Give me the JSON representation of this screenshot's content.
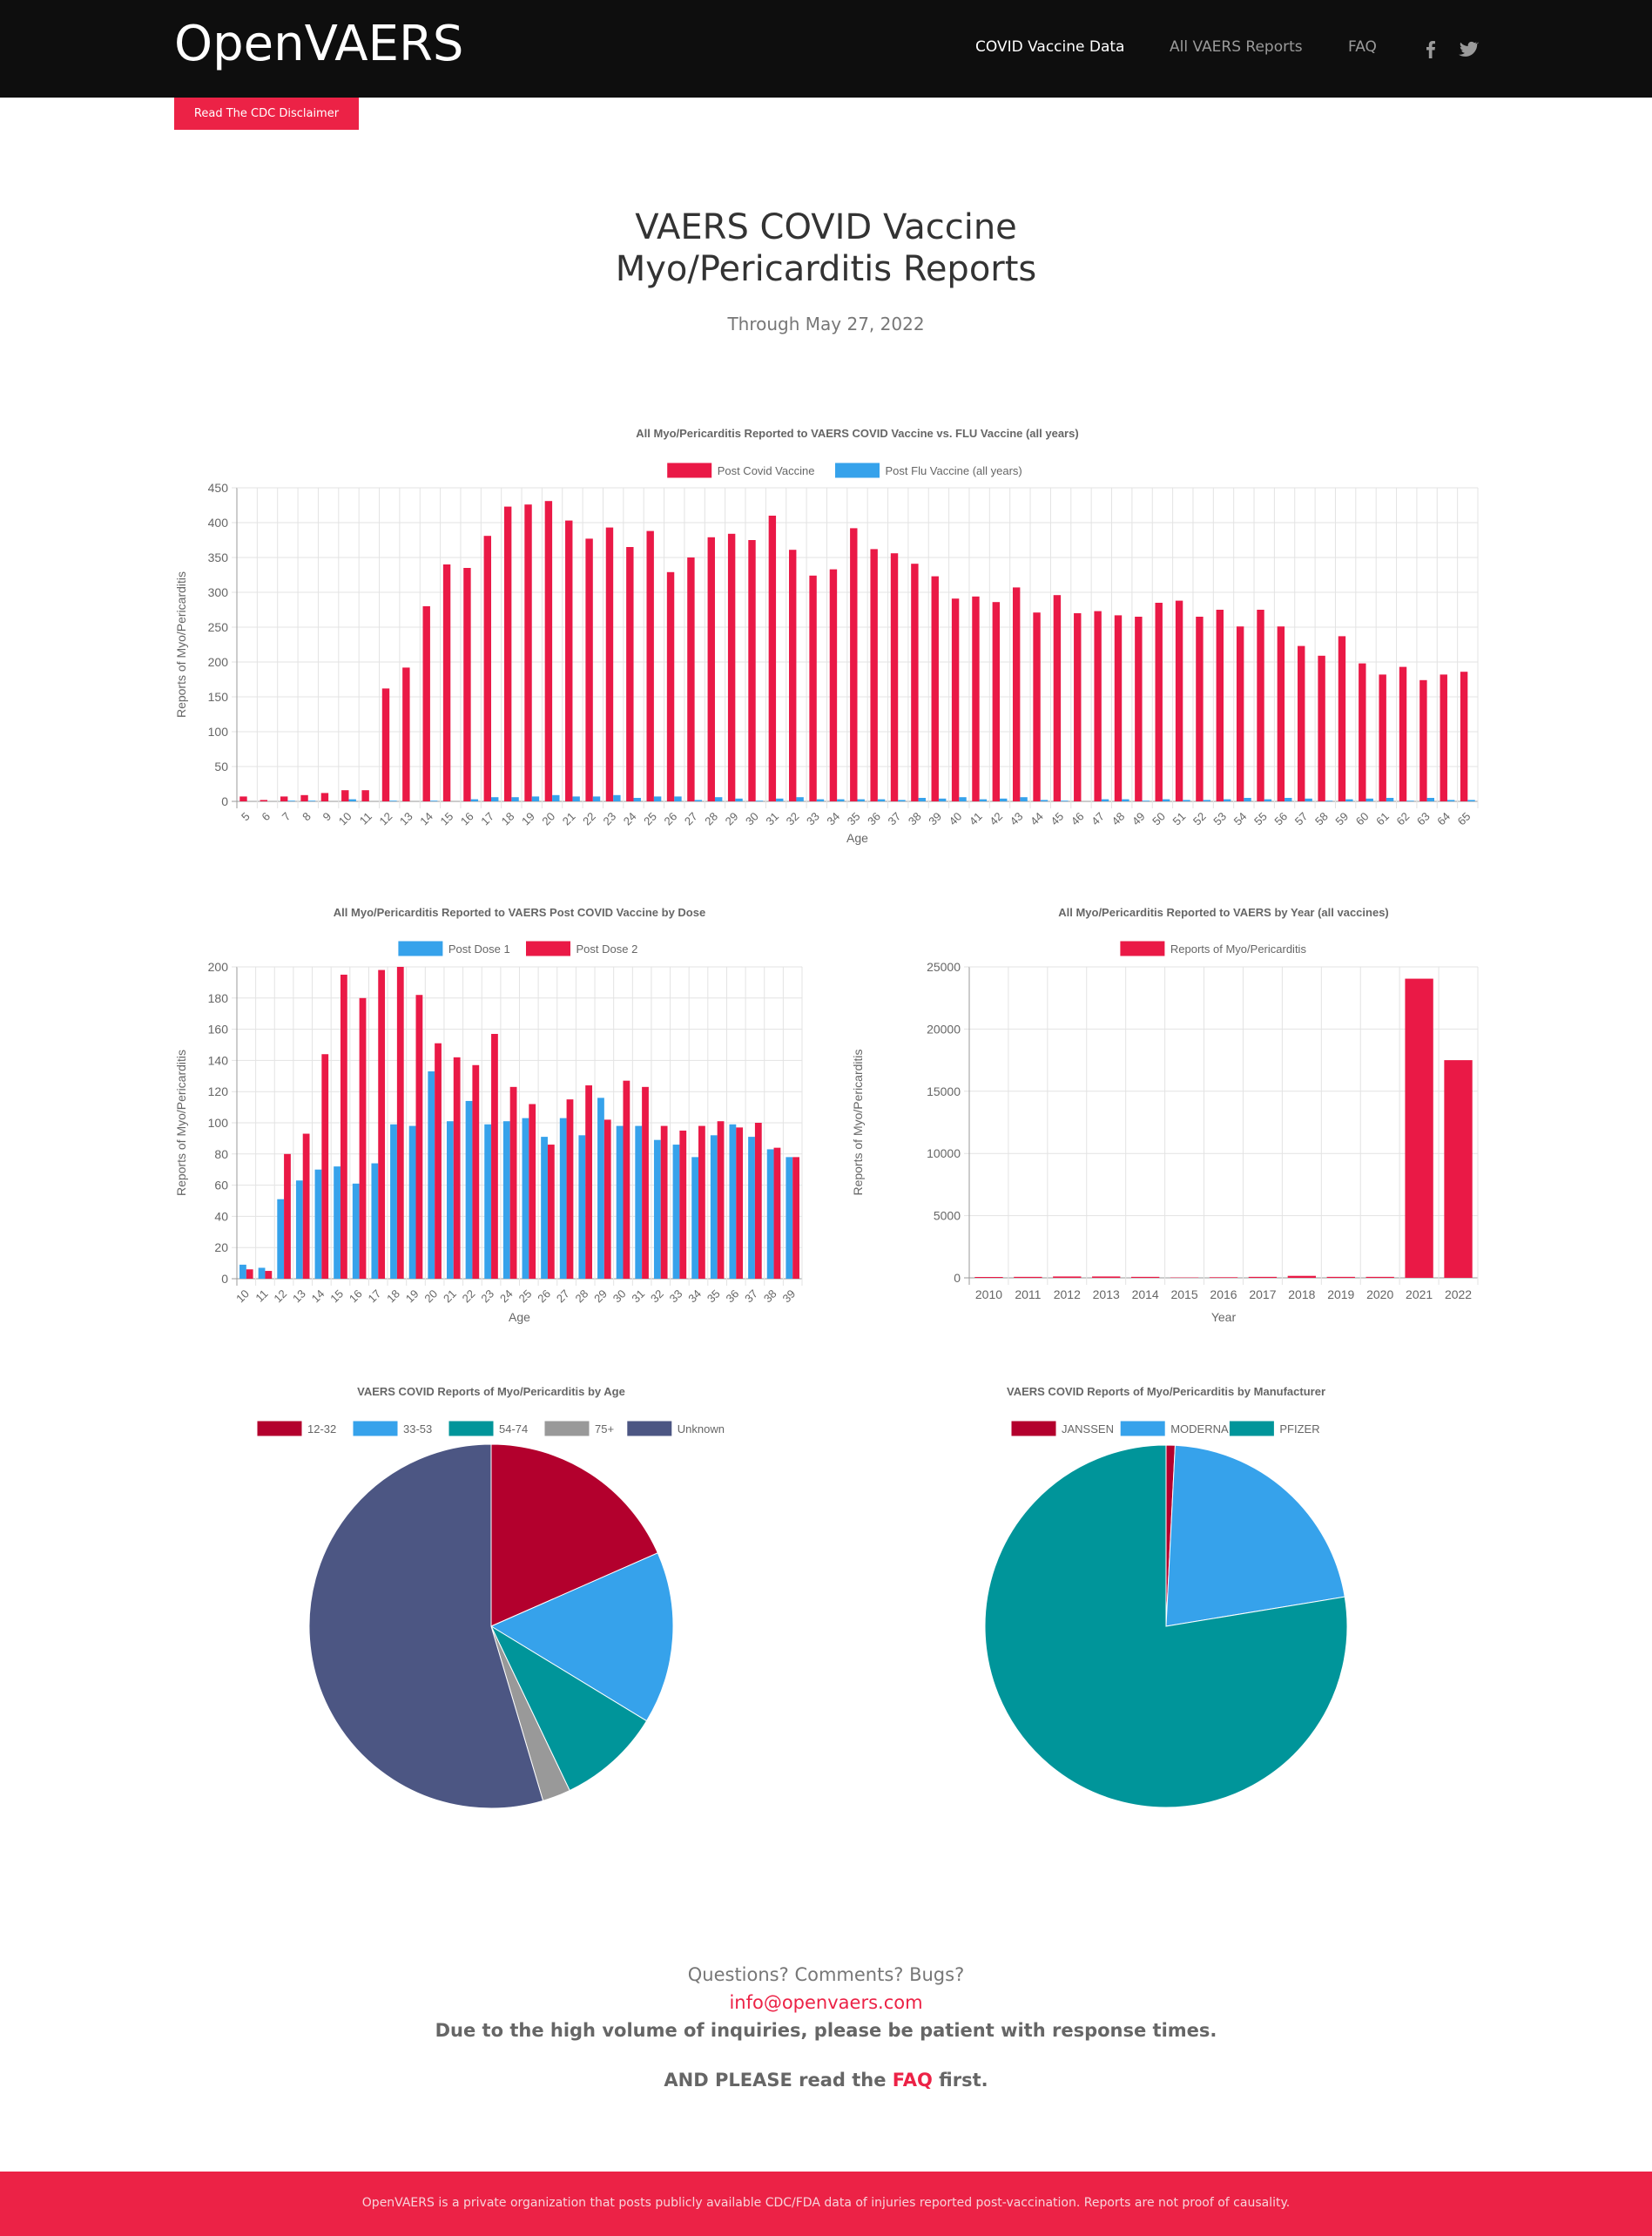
{
  "nav": {
    "logo": "OpenVAERS",
    "links": [
      {
        "label": "COVID Vaccine Data",
        "active": true
      },
      {
        "label": "All VAERS Reports",
        "active": false
      },
      {
        "label": "FAQ",
        "active": false
      }
    ],
    "social_icons": [
      "facebook-icon",
      "twitter-icon"
    ]
  },
  "disclaimer_button": "Read The CDC Disclaimer",
  "page": {
    "title_line1": "VAERS COVID Vaccine",
    "title_line2": "Myo/Pericarditis Reports",
    "subtitle": "Through May 27, 2022"
  },
  "colors": {
    "brand_red": "#ec2246",
    "bar_red": "#ea1946",
    "bar_blue": "#36a2eb",
    "pie_red": "#b3002d",
    "pie_blue": "#36a2eb",
    "pie_teal": "#00959a",
    "pie_gray": "#999999",
    "pie_navy": "#4c5683"
  },
  "chart_data": [
    {
      "id": "covid_vs_flu",
      "type": "bar",
      "title": "All Myo/Pericarditis Reported to VAERS COVID Vaccine vs. FLU Vaccine (all years)",
      "xlabel": "Age",
      "ylabel": "Reports of Myo/Pericarditis",
      "ylim": [
        0,
        450
      ],
      "yticks": [
        0,
        50,
        100,
        150,
        200,
        250,
        300,
        350,
        400,
        450
      ],
      "grid": true,
      "legend": "top-center",
      "categories": [
        "5",
        "6",
        "7",
        "8",
        "9",
        "10",
        "11",
        "12",
        "13",
        "14",
        "15",
        "16",
        "17",
        "18",
        "19",
        "20",
        "21",
        "22",
        "23",
        "24",
        "25",
        "26",
        "27",
        "28",
        "29",
        "30",
        "31",
        "32",
        "33",
        "34",
        "35",
        "36",
        "37",
        "38",
        "39",
        "40",
        "41",
        "42",
        "43",
        "44",
        "45",
        "46",
        "47",
        "48",
        "49",
        "50",
        "51",
        "52",
        "53",
        "54",
        "55",
        "56",
        "57",
        "58",
        "59",
        "60",
        "61",
        "62",
        "63",
        "64",
        "65"
      ],
      "series": [
        {
          "name": "Post Covid Vaccine",
          "color": "#ea1946",
          "values": [
            7,
            2,
            7,
            9,
            12,
            16,
            16,
            162,
            192,
            280,
            340,
            335,
            381,
            423,
            426,
            431,
            403,
            377,
            393,
            365,
            388,
            329,
            350,
            379,
            384,
            375,
            410,
            361,
            324,
            333,
            392,
            362,
            356,
            341,
            323,
            291,
            294,
            286,
            307,
            271,
            296,
            270,
            273,
            267,
            265,
            285,
            288,
            265,
            275,
            251,
            275,
            251,
            223,
            209,
            237,
            198,
            182,
            193,
            174,
            182,
            186
          ]
        },
        {
          "name": "Post Flu Vaccine (all years)",
          "color": "#36a2eb",
          "values": [
            0,
            0,
            1,
            1,
            0,
            3,
            0,
            1,
            0,
            1,
            0,
            3,
            6,
            6,
            7,
            9,
            7,
            7,
            9,
            5,
            7,
            7,
            2,
            6,
            4,
            1,
            4,
            6,
            3,
            3,
            3,
            3,
            2,
            5,
            4,
            6,
            3,
            4,
            6,
            2,
            1,
            0,
            3,
            3,
            1,
            3,
            2,
            2,
            3,
            5,
            3,
            5,
            4,
            1,
            3,
            4,
            5,
            1,
            5,
            2,
            2
          ]
        }
      ]
    },
    {
      "id": "by_dose",
      "type": "bar",
      "title": "All Myo/Pericarditis Reported to VAERS Post COVID Vaccine by Dose",
      "xlabel": "Age",
      "ylabel": "Reports of Myo/Pericarditis",
      "ylim": [
        0,
        200
      ],
      "yticks": [
        0,
        20,
        40,
        60,
        80,
        100,
        120,
        140,
        160,
        180,
        200
      ],
      "grid": true,
      "legend": "top-center",
      "categories": [
        "10",
        "11",
        "12",
        "13",
        "14",
        "15",
        "16",
        "17",
        "18",
        "19",
        "20",
        "21",
        "22",
        "23",
        "24",
        "25",
        "26",
        "27",
        "28",
        "29",
        "30",
        "31",
        "32",
        "33",
        "34",
        "35",
        "36",
        "37",
        "38",
        "39"
      ],
      "series": [
        {
          "name": "Post Dose 1",
          "color": "#36a2eb",
          "values": [
            9,
            7,
            51,
            63,
            70,
            72,
            61,
            74,
            99,
            98,
            133,
            101,
            114,
            99,
            101,
            103,
            91,
            103,
            92,
            116,
            98,
            98,
            89,
            86,
            78,
            92,
            99,
            91,
            83,
            78
          ]
        },
        {
          "name": "Post Dose 2",
          "color": "#ea1946",
          "values": [
            6,
            5,
            80,
            93,
            144,
            195,
            180,
            198,
            200,
            182,
            151,
            142,
            137,
            157,
            123,
            112,
            86,
            115,
            124,
            102,
            127,
            123,
            98,
            95,
            98,
            101,
            97,
            100,
            84,
            78
          ]
        }
      ]
    },
    {
      "id": "by_year",
      "type": "bar",
      "title": "All Myo/Pericarditis Reported to VAERS by Year (all vaccines)",
      "xlabel": "Year",
      "ylabel": "Reports of Myo/Pericarditis",
      "ylim": [
        0,
        25000
      ],
      "yticks": [
        0,
        5000,
        10000,
        15000,
        20000,
        25000
      ],
      "grid": true,
      "legend": "top-center",
      "categories": [
        "2010",
        "2011",
        "2012",
        "2013",
        "2014",
        "2015",
        "2016",
        "2017",
        "2018",
        "2019",
        "2020",
        "2021",
        "2022"
      ],
      "series": [
        {
          "name": "Reports of Myo/Pericarditis",
          "color": "#ea1946",
          "values": [
            70,
            80,
            110,
            110,
            80,
            30,
            50,
            80,
            160,
            80,
            80,
            24050,
            17500
          ]
        }
      ]
    },
    {
      "id": "pie_age",
      "type": "pie",
      "title": "VAERS COVID Reports of Myo/Pericarditis by Age",
      "legend": "top-center",
      "labels": [
        "12-32",
        "33-53",
        "54-74",
        "75+",
        "Unknown"
      ],
      "values": [
        18.4,
        15.3,
        9.2,
        2.5,
        54.6
      ],
      "unit": "percent (estimated)",
      "colors": [
        "#b3002d",
        "#36a2eb",
        "#00959a",
        "#999999",
        "#4c5683"
      ]
    },
    {
      "id": "pie_manufacturer",
      "type": "pie",
      "title": "VAERS COVID Reports of Myo/Pericarditis by Manufacturer",
      "legend": "top-center",
      "labels": [
        "JANSSEN",
        "MODERNA",
        "PFIZER"
      ],
      "values": [
        0.8,
        21.6,
        77.6
      ],
      "unit": "percent (estimated)",
      "colors": [
        "#b3002d",
        "#36a2eb",
        "#00959a"
      ]
    }
  ],
  "footer": {
    "questions": "Questions? Comments? Bugs?",
    "email": "info@openvaers.com",
    "notice": "Due to the high volume of inquiries, please be patient with response times.",
    "faq_prefix": "AND PLEASE read the ",
    "faq_link": "FAQ",
    "faq_suffix": " first.",
    "disclaimer": "OpenVAERS is a private organization that posts publicly available CDC/FDA data of injuries reported post-vaccination. Reports are not proof of causality."
  }
}
